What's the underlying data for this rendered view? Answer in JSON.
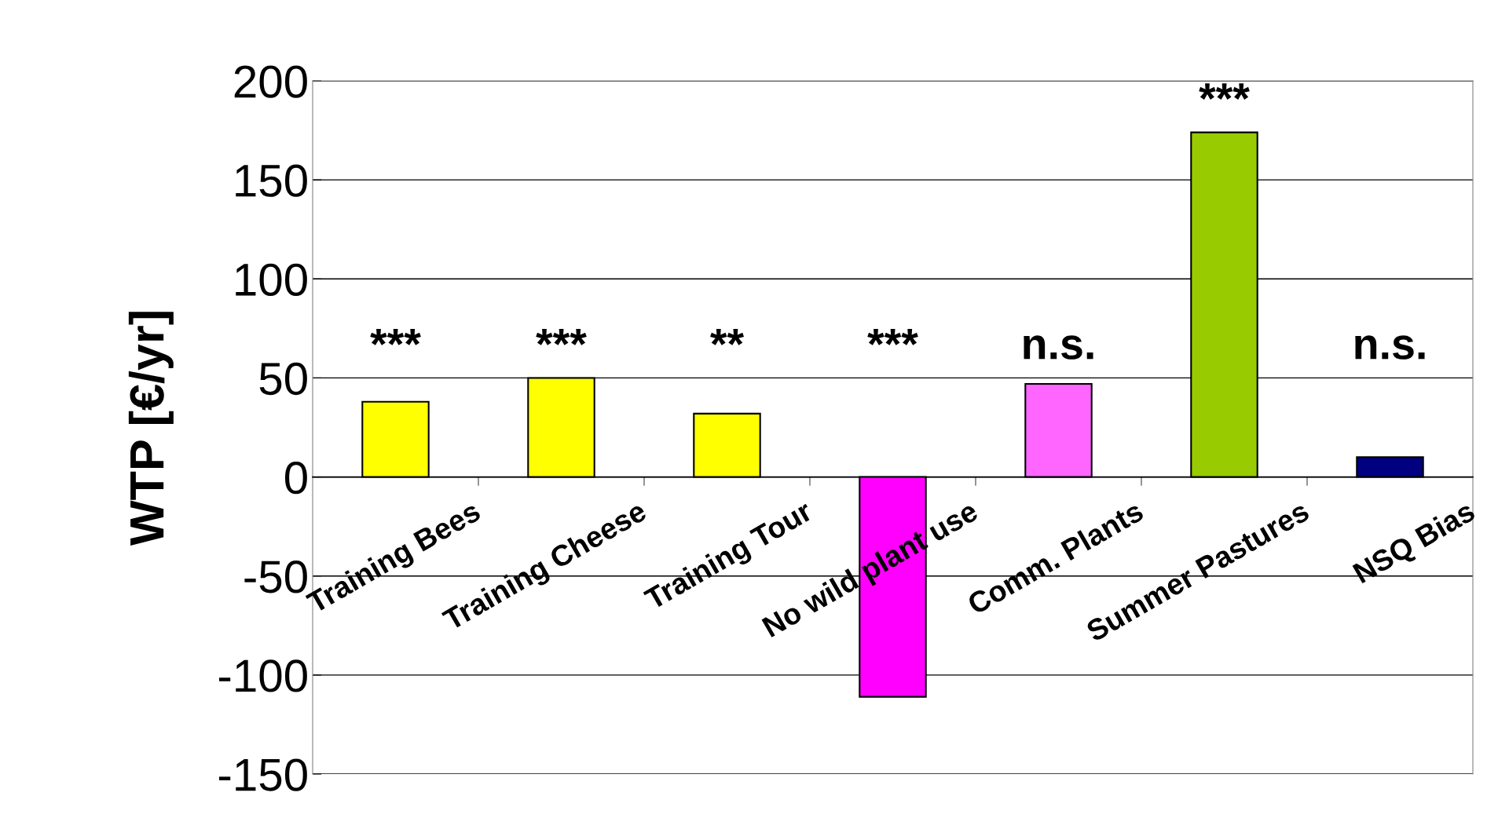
{
  "chart_data": {
    "type": "bar",
    "ylabel": "WTP [€/yr]",
    "categories": [
      "Training Bees",
      "Training Cheese",
      "Training Tour",
      "No wild plant use",
      "Comm. Plants",
      "Summer Pastures",
      "NSQ Bias"
    ],
    "values": [
      38,
      50,
      32,
      -111,
      47,
      174,
      10
    ],
    "colors": [
      "#ffff00",
      "#ffff00",
      "#ffff00",
      "#ff00ff",
      "#ff66ff",
      "#99cc00",
      "#000080"
    ],
    "ylim": [
      -150,
      200
    ],
    "yticks": [
      -150,
      -100,
      -50,
      0,
      50,
      100,
      150,
      200
    ],
    "grid": "y",
    "legend": false,
    "annotations": [
      "***",
      "***",
      "**",
      "***",
      "n.s.",
      "***",
      "n.s."
    ]
  }
}
